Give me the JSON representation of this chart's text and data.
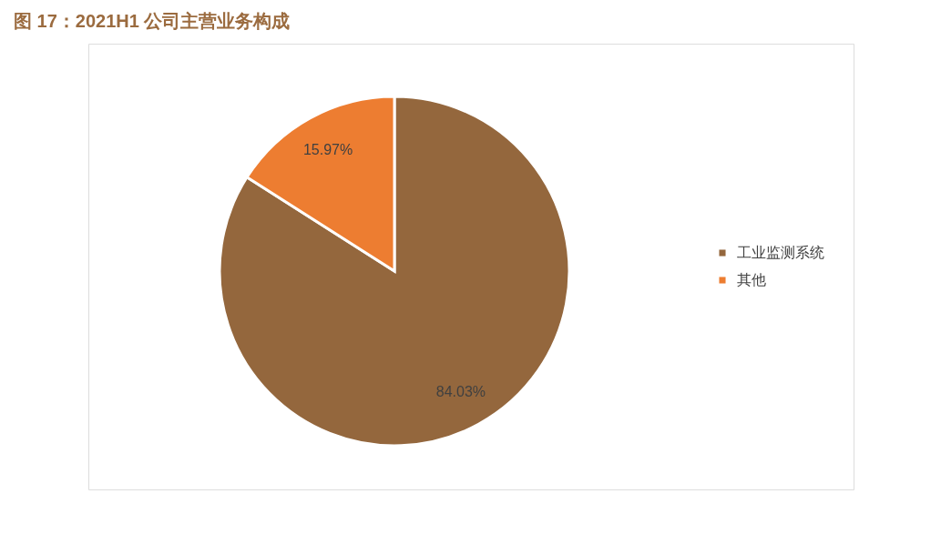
{
  "chart_data": {
    "type": "pie",
    "title": "图 17：2021H1 公司主营业务构成",
    "categories": [
      "工业监测系统",
      "其他"
    ],
    "values": [
      84.03,
      15.97
    ],
    "colors": [
      "#94673d",
      "#ed7d31"
    ],
    "value_labels": [
      "84.03%",
      "15.97%"
    ],
    "legend": "right"
  }
}
